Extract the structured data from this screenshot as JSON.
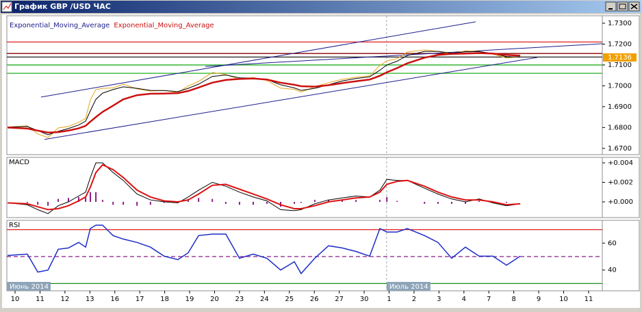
{
  "window": {
    "title": "График GBP /USD ЧАС"
  },
  "chart_data": [
    {
      "type": "line",
      "xlim": [
        -0.33,
        23.55
      ],
      "ylim": [
        1.667,
        1.7336
      ],
      "yticks": [
        {
          "value": 1.67,
          "label": "1.6700"
        },
        {
          "value": 1.68,
          "label": "1.6800"
        },
        {
          "value": 1.69,
          "label": "1.6900"
        },
        {
          "value": 1.7,
          "label": "1.7000"
        },
        {
          "value": 1.71,
          "label": "1.7100"
        },
        {
          "value": 1.72,
          "label": "1.7200"
        },
        {
          "value": 1.73,
          "label": "1.7300"
        }
      ],
      "last_price": {
        "value": 1.7136,
        "label": "1.7136"
      },
      "x": [
        -0.3,
        0.49,
        0.91,
        1.32,
        1.73,
        2.14,
        2.55,
        2.83,
        3.02,
        3.24,
        3.51,
        3.93,
        4.34,
        4.89,
        5.43,
        5.98,
        6.53,
        6.94,
        7.36,
        7.91,
        8.45,
        9.0,
        9.55,
        10.1,
        10.65,
        11.2,
        11.47,
        12.02,
        12.57,
        13.12,
        13.67,
        14.22,
        14.63,
        14.91,
        15.32,
        15.73,
        16.42,
        16.96,
        17.51,
        18.06,
        18.61,
        19.16,
        19.71,
        20.26
      ],
      "series": [
        {
          "color": "#e8a317",
          "values": [
            1.6802,
            1.6808,
            1.6769,
            1.6752,
            1.6798,
            1.6805,
            1.6825,
            1.6844,
            1.6933,
            1.6982,
            1.6988,
            1.699,
            1.7008,
            1.6985,
            1.6975,
            1.6978,
            1.6968,
            1.6999,
            1.7021,
            1.7064,
            1.7054,
            1.7031,
            1.704,
            1.7025,
            1.6989,
            1.6983,
            1.697,
            1.6995,
            1.7015,
            1.7031,
            1.7041,
            1.7048,
            1.7097,
            1.712,
            1.713,
            1.7162,
            1.7172,
            1.7165,
            1.7152,
            1.7168,
            1.7165,
            1.7152,
            1.7133,
            1.7139
          ]
        },
        {
          "name": "Exponential_Moving_Average",
          "color": "#000000",
          "label_color": "#1c1c8c",
          "width": 1,
          "values": [
            1.6802,
            1.6805,
            1.6785,
            1.6765,
            1.6782,
            1.6795,
            1.6812,
            1.683,
            1.688,
            1.6935,
            1.6965,
            1.6982,
            1.6995,
            1.6988,
            1.6978,
            1.6977,
            1.6972,
            1.6988,
            1.7008,
            1.7045,
            1.7052,
            1.7038,
            1.7036,
            1.703,
            1.7005,
            1.699,
            1.6978,
            1.6988,
            1.7005,
            1.7023,
            1.7035,
            1.7043,
            1.7075,
            1.71,
            1.7118,
            1.7145,
            1.7165,
            1.7165,
            1.7157,
            1.7163,
            1.7164,
            1.7155,
            1.714,
            1.7138
          ]
        },
        {
          "name": "Exponential_Moving_Average",
          "color": "#cc1010",
          "label_color": "#cc1010",
          "width": 2.5,
          "values": [
            1.68,
            1.6795,
            1.6785,
            1.6776,
            1.6778,
            1.6785,
            1.6796,
            1.6808,
            1.6828,
            1.685,
            1.6875,
            1.6905,
            1.6935,
            1.6955,
            1.6962,
            1.6963,
            1.6965,
            1.6975,
            1.6992,
            1.7015,
            1.7028,
            1.7033,
            1.7035,
            1.703,
            1.7015,
            1.7005,
            1.6998,
            1.6996,
            1.7003,
            1.7013,
            1.7022,
            1.703,
            1.7048,
            1.7065,
            1.7085,
            1.7108,
            1.7135,
            1.7148,
            1.7153,
            1.7155,
            1.7157,
            1.7155,
            1.7148,
            1.7145
          ]
        }
      ],
      "hlines": [
        {
          "value": 1.721,
          "color": "#e02020"
        },
        {
          "value": 1.7155,
          "color": "#8b0000"
        },
        {
          "value": 1.7138,
          "color": "#202020"
        },
        {
          "value": 1.71,
          "color": "#22b022"
        },
        {
          "value": 1.706,
          "color": "#22b022"
        }
      ],
      "trendlines": [
        {
          "x": [
            1.04,
            18.47
          ],
          "y": [
            1.6946,
            1.7307
          ],
          "color": "#1c1c8c"
        },
        {
          "x": [
            1.18,
            20.94
          ],
          "y": [
            1.6743,
            1.7136
          ],
          "color": "#1c1c8c"
        },
        {
          "x": [
            7.63,
            23.55
          ],
          "y": [
            1.7093,
            1.7202
          ],
          "color": "#1c1c8c"
        }
      ],
      "vlines": [
        14.9
      ]
    },
    {
      "type": "line",
      "title": "MACD",
      "xlim": [
        -0.33,
        23.55
      ],
      "ylim": [
        -0.00161,
        0.00456
      ],
      "yticks": [
        {
          "value": 0,
          "label": "+0.000"
        },
        {
          "value": 0.002,
          "label": "+0.002"
        },
        {
          "value": 0.004,
          "label": "+0.004"
        }
      ],
      "x": [
        -0.3,
        0.49,
        0.91,
        1.32,
        1.73,
        2.14,
        2.55,
        2.83,
        3.02,
        3.24,
        3.51,
        3.93,
        4.34,
        4.89,
        5.43,
        5.98,
        6.53,
        6.94,
        7.36,
        7.91,
        8.45,
        9.0,
        9.55,
        10.1,
        10.65,
        11.2,
        11.47,
        12.02,
        12.57,
        13.12,
        13.67,
        14.22,
        14.63,
        14.91,
        15.32,
        15.73,
        16.42,
        16.96,
        17.51,
        18.06,
        18.61,
        19.16,
        19.71,
        20.26
      ],
      "series": [
        {
          "style": "histogram",
          "color": "#8b1a8b",
          "values": [
            0,
            -0.0001,
            -0.0003,
            -0.0004,
            0.0003,
            0.0004,
            0.0005,
            0.0005,
            0.001,
            0.001,
            0.0002,
            -0.0003,
            -0.0003,
            -0.0004,
            -0.0003,
            -0.0001,
            -0.0001,
            0.0003,
            0.0004,
            0.0003,
            -0.0002,
            -0.0003,
            -0.0003,
            -0.0002,
            -0.0005,
            -0.0002,
            -0.0001,
            0.0002,
            0.0002,
            0.0002,
            0.0002,
            0,
            0.0002,
            0.0005,
            0.0001,
            0,
            -0.0002,
            -0.0002,
            -0.0002,
            -0.0002,
            0.0001,
            -0.0001,
            -0.0001,
            0
          ]
        },
        {
          "color": "#000000",
          "width": 1,
          "values": [
            -0.0001,
            -0.0003,
            -0.0008,
            -0.0012,
            -0.0004,
            0,
            0.0006,
            0.001,
            0.0025,
            0.004,
            0.004,
            0.003,
            0.0022,
            0.0008,
            0.0002,
            0,
            -0.0001,
            0.0005,
            0.0012,
            0.002,
            0.0016,
            0.001,
            0.0005,
            0.0001,
            -0.0008,
            -0.0009,
            -0.0008,
            -0.0002,
            0.0002,
            0.0004,
            0.0006,
            0.0005,
            0.0012,
            0.0023,
            0.0022,
            0.0022,
            0.0014,
            0.0008,
            0.0003,
            0,
            0.0003,
            -0.0001,
            -0.0004,
            -0.0002
          ]
        },
        {
          "color": "#dd1111",
          "width": 2,
          "values": [
            -0.0001,
            -0.0002,
            -0.0005,
            -0.0008,
            -0.0007,
            -0.0004,
            0.0001,
            0.0005,
            0.0015,
            0.003,
            0.0038,
            0.0033,
            0.0025,
            0.0012,
            0.0005,
            0.0001,
            0,
            0.0002,
            0.0008,
            0.0017,
            0.0018,
            0.0013,
            0.0008,
            0.0003,
            -0.0003,
            -0.0007,
            -0.0007,
            -0.0004,
            0,
            0.0002,
            0.0004,
            0.0005,
            0.001,
            0.0018,
            0.0021,
            0.0022,
            0.0016,
            0.001,
            0.0005,
            0.0002,
            0.0002,
            0,
            -0.0003,
            -0.0002
          ]
        }
      ],
      "vlines": [
        14.9
      ]
    },
    {
      "type": "line",
      "title": "RSI",
      "xlim": [
        -0.33,
        23.55
      ],
      "ylim": [
        24.6,
        76.9
      ],
      "yticks": [
        40,
        60
      ],
      "x": [
        -0.3,
        0.49,
        0.91,
        1.32,
        1.73,
        2.14,
        2.55,
        2.83,
        3.02,
        3.24,
        3.51,
        3.93,
        4.34,
        4.89,
        5.43,
        5.98,
        6.53,
        6.94,
        7.36,
        7.91,
        8.45,
        9.0,
        9.55,
        10.1,
        10.65,
        11.2,
        11.47,
        12.02,
        12.57,
        13.12,
        13.67,
        14.22,
        14.63,
        14.91,
        15.32,
        15.73,
        16.42,
        16.96,
        17.51,
        18.06,
        18.61,
        19.16,
        19.71,
        20.26
      ],
      "series": [
        {
          "color": "#1c2cc8",
          "width": 1.5,
          "values": [
            50.8,
            51.8,
            38.5,
            40,
            55.4,
            56.4,
            60.5,
            57,
            70.8,
            73.3,
            73.3,
            65.6,
            63,
            60.5,
            57,
            50.3,
            47.7,
            52.8,
            65.6,
            66.7,
            66.7,
            48.7,
            51.8,
            48.7,
            40,
            46.2,
            37.4,
            48.7,
            58,
            56.4,
            53.8,
            50.3,
            70.8,
            68.2,
            68.2,
            70.8,
            65.6,
            60.5,
            48.7,
            57,
            50.3,
            50.3,
            43.6,
            50.3
          ]
        }
      ],
      "hlines": [
        {
          "value": 70,
          "color": "#e02020"
        },
        {
          "value": 50,
          "color": "#8b1a8b",
          "dash": true
        },
        {
          "value": 30,
          "color": "#1a8c1a"
        }
      ],
      "vlines": [
        14.9
      ],
      "annotations": [
        {
          "text": "Июнь 2014",
          "x": -0.33
        },
        {
          "text": "Июль 2014",
          "x": 14.9
        }
      ],
      "xticks": [
        {
          "value": 0,
          "label": "10"
        },
        {
          "value": 1,
          "label": "11"
        },
        {
          "value": 2,
          "label": "12"
        },
        {
          "value": 3,
          "label": "13"
        },
        {
          "value": 4,
          "label": "16"
        },
        {
          "value": 5,
          "label": "17"
        },
        {
          "value": 6,
          "label": "18"
        },
        {
          "value": 7,
          "label": "19"
        },
        {
          "value": 8,
          "label": "20"
        },
        {
          "value": 9,
          "label": "23"
        },
        {
          "value": 10,
          "label": "24"
        },
        {
          "value": 11,
          "label": "25"
        },
        {
          "value": 12,
          "label": "26"
        },
        {
          "value": 13,
          "label": "27"
        },
        {
          "value": 14,
          "label": "30"
        },
        {
          "value": 15,
          "label": "1"
        },
        {
          "value": 16,
          "label": "2"
        },
        {
          "value": 17,
          "label": "3"
        },
        {
          "value": 18,
          "label": "4"
        },
        {
          "value": 19,
          "label": "7"
        },
        {
          "value": 20,
          "label": "8"
        },
        {
          "value": 21,
          "label": "9"
        },
        {
          "value": 22,
          "label": "10"
        },
        {
          "value": 23,
          "label": "11"
        }
      ]
    }
  ]
}
